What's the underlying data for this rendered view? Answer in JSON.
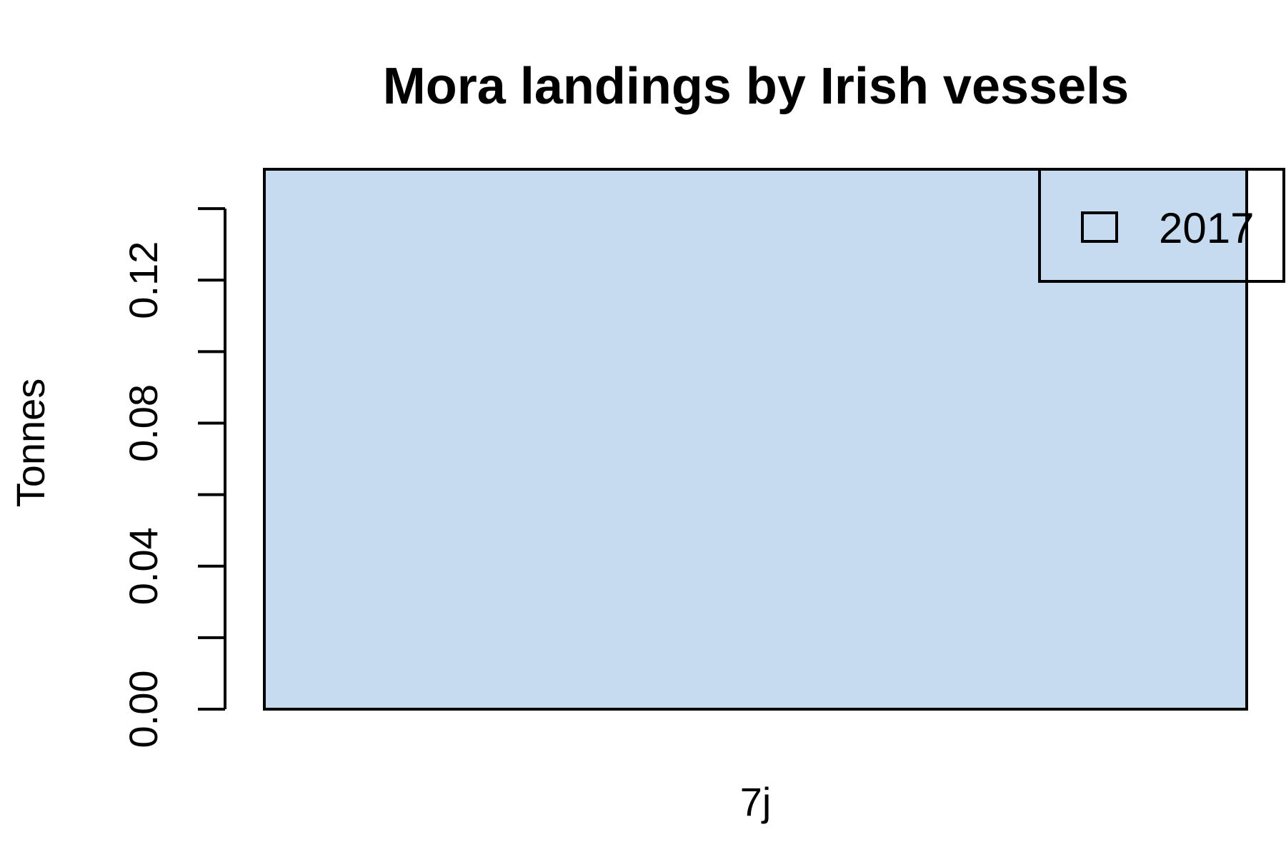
{
  "chart_data": {
    "type": "bar",
    "title": "Mora landings by Irish vessels",
    "ylabel": "Tonnes",
    "xlabel": "",
    "categories": [
      "7j"
    ],
    "series": [
      {
        "name": "2017",
        "values": [
          0.151
        ]
      }
    ],
    "ylim": [
      0,
      0.151
    ],
    "yticks": [
      0.0,
      0.02,
      0.04,
      0.06,
      0.08,
      0.1,
      0.12,
      0.14
    ],
    "ytick_labels": [
      "0.00",
      "",
      "0.04",
      "",
      "0.08",
      "",
      "0.12",
      ""
    ],
    "bar_color": "#c6dbef",
    "legend_position": "top-right",
    "grid": false
  }
}
